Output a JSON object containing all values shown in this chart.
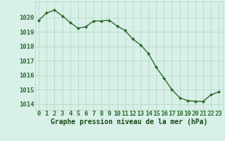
{
  "x": [
    0,
    1,
    2,
    3,
    4,
    5,
    6,
    7,
    8,
    9,
    10,
    11,
    12,
    13,
    14,
    15,
    16,
    17,
    18,
    19,
    20,
    21,
    22,
    23
  ],
  "y": [
    1019.8,
    1020.3,
    1020.5,
    1020.1,
    1019.65,
    1019.25,
    1019.35,
    1019.75,
    1019.75,
    1019.8,
    1019.4,
    1019.1,
    1018.5,
    1018.1,
    1017.5,
    1016.55,
    1015.8,
    1015.0,
    1014.45,
    1014.25,
    1014.2,
    1014.2,
    1014.65,
    1014.85
  ],
  "line_color": "#2d6a2d",
  "marker": "D",
  "marker_size": 2.2,
  "line_width": 1.0,
  "bg_color": "#d8f0e8",
  "grid_color": "#b0d4c0",
  "xlabel": "Graphe pression niveau de la mer (hPa)",
  "xlabel_color": "#1a4a1a",
  "xlabel_fontsize": 7.0,
  "tick_color": "#2d6a2d",
  "tick_fontsize": 6.5,
  "ylim": [
    1013.6,
    1021.1
  ],
  "yticks": [
    1014,
    1015,
    1016,
    1017,
    1018,
    1019,
    1020
  ],
  "xlim": [
    -0.5,
    23.5
  ],
  "xticks": [
    0,
    1,
    2,
    3,
    4,
    5,
    6,
    7,
    8,
    9,
    10,
    11,
    12,
    13,
    14,
    15,
    16,
    17,
    18,
    19,
    20,
    21,
    22,
    23
  ]
}
